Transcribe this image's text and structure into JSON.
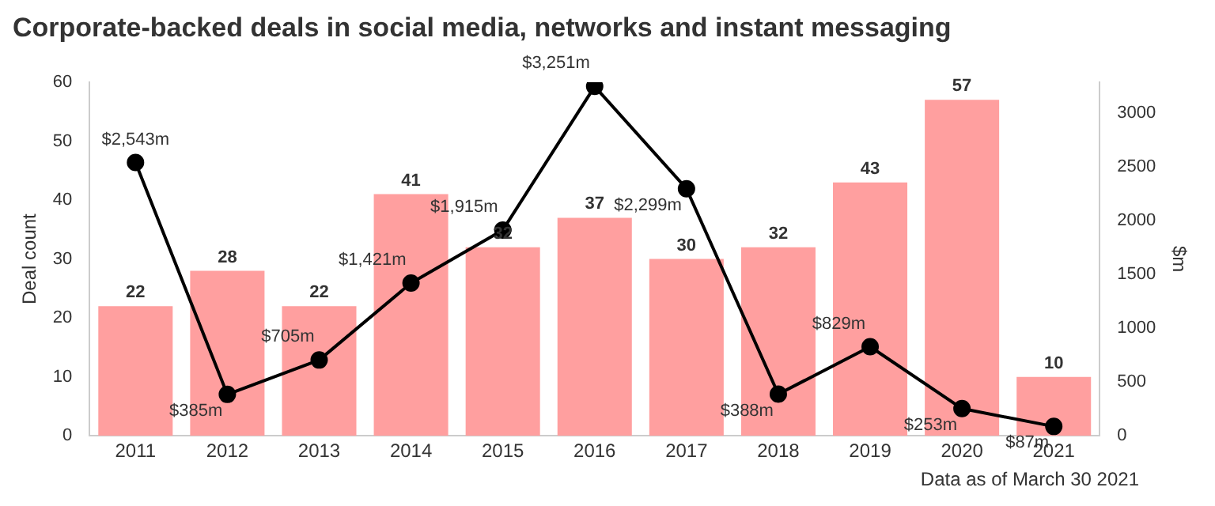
{
  "chart_data": {
    "type": "bar",
    "title": "Corporate-backed deals in social media, networks and instant messaging",
    "categories": [
      "2011",
      "2012",
      "2013",
      "2014",
      "2015",
      "2016",
      "2017",
      "2018",
      "2019",
      "2020",
      "2021"
    ],
    "series": [
      {
        "color": "#ff9f9f",
        "values": [
          22,
          28,
          22,
          41,
          32,
          37,
          30,
          32,
          43,
          57,
          10
        ]
      },
      {
        "type": "line",
        "axis": "y2",
        "color": "#000000",
        "values": [
          2543,
          385,
          705,
          1421,
          1915,
          3251,
          2299,
          388,
          829,
          253,
          87
        ],
        "value_labels": [
          "$2,543m",
          "$385m",
          "$705m",
          "$1,421m",
          "$1,915m",
          "$3,251m",
          "$2,299m",
          "$388m",
          "$829m",
          "$253m",
          "$87m"
        ]
      }
    ],
    "ylabel": "Deal count",
    "y2label": "$m",
    "ylim": [
      0,
      60
    ],
    "yticks": [
      0,
      10,
      20,
      30,
      40,
      50,
      60
    ],
    "y2lim": [
      0,
      3290
    ],
    "y2ticks": [
      0,
      500,
      1000,
      1500,
      2000,
      2500,
      3000
    ],
    "data_labels": true,
    "marker": "circle",
    "grid": false,
    "legend": false,
    "annotations": [
      "Data as of March 30 2021"
    ]
  }
}
